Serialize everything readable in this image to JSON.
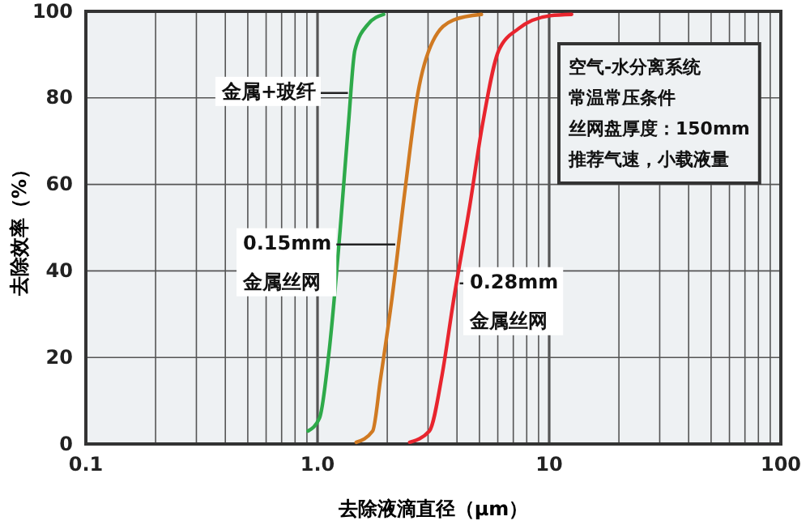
{
  "chart_data": {
    "type": "line",
    "xlabel": "去除液滴直径（μm）",
    "ylabel": "去除效率（%）",
    "log": "x",
    "xlim": [
      0.1,
      100
    ],
    "ylim": [
      0,
      100
    ],
    "xticks": [
      0.1,
      {
        "value": 0.2,
        "label": null
      },
      {
        "value": 0.3,
        "label": null
      },
      {
        "value": 0.4,
        "label": null
      },
      {
        "value": 0.5,
        "label": null
      },
      {
        "value": 0.6,
        "label": null
      },
      {
        "value": 0.7,
        "label": null
      },
      {
        "value": 0.8,
        "label": null
      },
      {
        "value": 0.9,
        "label": null
      },
      {
        "value": 1,
        "label": "1.0"
      },
      {
        "value": 2,
        "label": null
      },
      {
        "value": 3,
        "label": null
      },
      {
        "value": 4,
        "label": null
      },
      {
        "value": 5,
        "label": null
      },
      {
        "value": 6,
        "label": null
      },
      {
        "value": 7,
        "label": null
      },
      {
        "value": 8,
        "label": null
      },
      {
        "value": 9,
        "label": null
      },
      10,
      {
        "value": 20,
        "label": null
      },
      {
        "value": 30,
        "label": null
      },
      {
        "value": 40,
        "label": null
      },
      {
        "value": 50,
        "label": null
      },
      {
        "value": 60,
        "label": null
      },
      {
        "value": 70,
        "label": null
      },
      {
        "value": 80,
        "label": null
      },
      {
        "value": 90,
        "label": null
      },
      100
    ],
    "yticks": [
      0,
      20,
      40,
      60,
      80,
      100
    ],
    "grid": true,
    "legend": false,
    "marker": "none",
    "line_style": "solid",
    "series": [
      {
        "name": "金属+玻纤",
        "color": "#2eaa4a",
        "x": [
          0.91,
          1.02,
          1.12,
          1.25,
          1.36,
          1.45,
          1.65,
          1.93
        ],
        "values": [
          3,
          6,
          21,
          49,
          74,
          91,
          97,
          99.3
        ]
      },
      {
        "name": "0.15mm 金属丝网",
        "color": "#d07a22",
        "x": [
          1.47,
          1.73,
          1.87,
          2.1,
          2.39,
          2.71,
          3.14,
          3.86,
          5.1
        ],
        "values": [
          0.4,
          3,
          15,
          34,
          59,
          81,
          93,
          98,
          99.3
        ]
      },
      {
        "name": "0.28mm 金属丝网",
        "color": "#e8252e",
        "x": [
          2.5,
          3.04,
          3.45,
          3.86,
          4.54,
          5.16,
          6.06,
          7.37,
          10.1,
          12.5
        ],
        "values": [
          0.4,
          3,
          16,
          33,
          55,
          74,
          91,
          96,
          99,
          99.3
        ]
      }
    ],
    "annotations": [
      "空气-水分离系统",
      "常温常压条件",
      "丝网盘厚度：150mm",
      "推荐气速，小载液量"
    ]
  }
}
